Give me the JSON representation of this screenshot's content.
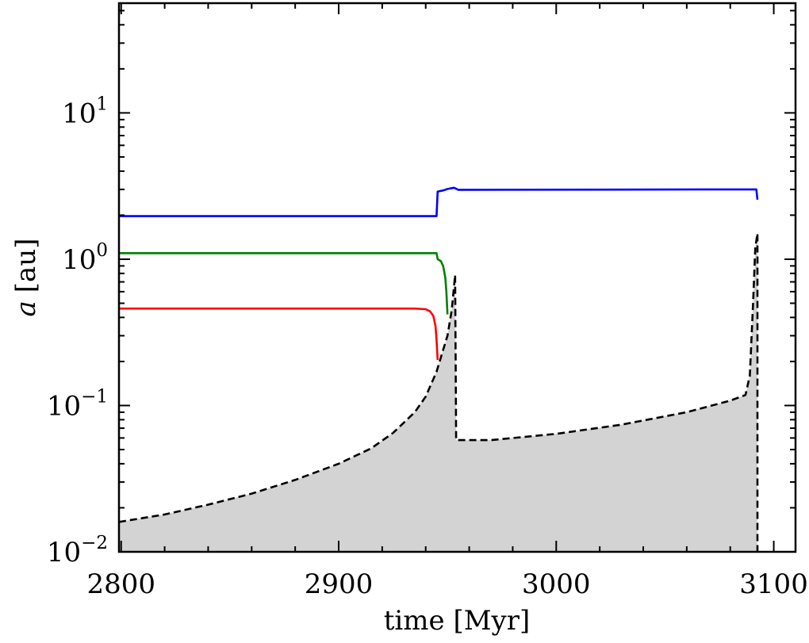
{
  "chart_data": {
    "type": "line",
    "xlabel": "time [Myr]",
    "ylabel_var": "a",
    "ylabel_unit": "[au]",
    "xlim": [
      2799,
      3110
    ],
    "ylim_log10": [
      -2,
      1.75
    ],
    "yscale": "log",
    "grid": false,
    "x_ticks": [
      {
        "value": 2800,
        "label": "2800"
      },
      {
        "value": 2900,
        "label": "2900"
      },
      {
        "value": 3000,
        "label": "3000"
      },
      {
        "value": 3100,
        "label": "3100"
      }
    ],
    "y_ticks": [
      {
        "exp": -2,
        "base": "10",
        "sup": "−2"
      },
      {
        "exp": -1,
        "base": "10",
        "sup": "−1"
      },
      {
        "exp": 0,
        "base": "10",
        "sup": "0"
      },
      {
        "exp": 1,
        "base": "10",
        "sup": "1"
      }
    ],
    "series": [
      {
        "color": "#0000ff",
        "style": "solid",
        "points": [
          [
            2799,
            1.97
          ],
          [
            2945,
            1.97
          ],
          [
            2945.5,
            2.9
          ],
          [
            2948,
            2.95
          ],
          [
            2950,
            3.02
          ],
          [
            2953,
            3.08
          ],
          [
            2955,
            2.98
          ],
          [
            3092,
            3.0
          ],
          [
            3092.5,
            2.55
          ]
        ]
      },
      {
        "color": "#008000",
        "style": "solid",
        "points": [
          [
            2799,
            1.1
          ],
          [
            2945,
            1.1
          ],
          [
            2945.5,
            1.0
          ],
          [
            2947,
            0.97
          ],
          [
            2948,
            0.9
          ],
          [
            2949,
            0.75
          ],
          [
            2949.5,
            0.6
          ],
          [
            2950,
            0.42
          ]
        ]
      },
      {
        "color": "#ff0000",
        "style": "solid",
        "points": [
          [
            2799,
            0.46
          ],
          [
            2935,
            0.46
          ],
          [
            2940,
            0.455
          ],
          [
            2942,
            0.44
          ],
          [
            2943.5,
            0.41
          ],
          [
            2944.5,
            0.35
          ],
          [
            2945,
            0.28
          ],
          [
            2945.5,
            0.205
          ]
        ]
      },
      {
        "color": "#000000",
        "style": "dashed",
        "fill": "#d3d3d3",
        "points": [
          [
            2799,
            0.016
          ],
          [
            2820,
            0.018
          ],
          [
            2840,
            0.021
          ],
          [
            2860,
            0.025
          ],
          [
            2880,
            0.031
          ],
          [
            2900,
            0.04
          ],
          [
            2915,
            0.051
          ],
          [
            2925,
            0.065
          ],
          [
            2935,
            0.09
          ],
          [
            2940,
            0.115
          ],
          [
            2945,
            0.17
          ],
          [
            2948,
            0.24
          ],
          [
            2950,
            0.3
          ],
          [
            2952,
            0.45
          ],
          [
            2953.5,
            0.78
          ],
          [
            2954,
            0.058
          ],
          [
            2970,
            0.058
          ],
          [
            3000,
            0.064
          ],
          [
            3030,
            0.074
          ],
          [
            3060,
            0.09
          ],
          [
            3080,
            0.108
          ],
          [
            3087,
            0.118
          ],
          [
            3089,
            0.16
          ],
          [
            3090.5,
            0.5
          ],
          [
            3091.5,
            1.2
          ],
          [
            3092.5,
            1.5
          ],
          [
            3092.5,
            0.006
          ]
        ]
      }
    ]
  }
}
